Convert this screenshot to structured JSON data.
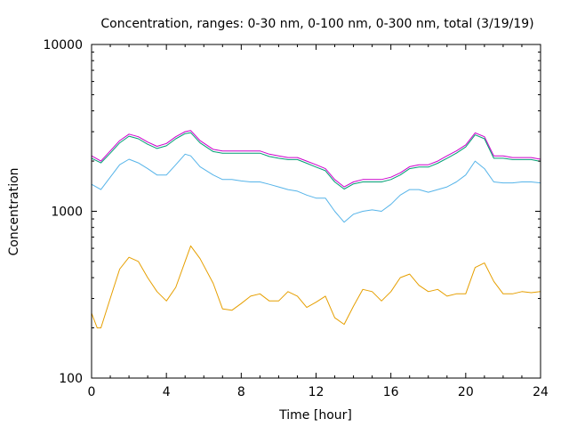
{
  "chart_data": {
    "type": "line",
    "title": "Concentration, ranges: 0-30 nm, 0-100 nm, 0-300 nm, total (3/19/19)",
    "xlabel": "Time [hour]",
    "ylabel": "Concentration",
    "xlim": [
      0,
      24
    ],
    "ylim": [
      100,
      10000
    ],
    "yscale": "log",
    "grid": false,
    "legend": "none",
    "x_ticks": [
      0,
      4,
      8,
      12,
      16,
      20,
      24
    ],
    "x_tick_labels": [
      "0",
      "4",
      "8",
      "12",
      "16",
      "20",
      "24"
    ],
    "y_ticks": [
      100,
      1000,
      10000
    ],
    "y_tick_labels": [
      "100",
      "1000",
      "10000"
    ],
    "series": [
      {
        "color": "#cc00cc",
        "x": [
          0,
          0.5,
          1,
          1.5,
          2,
          2.5,
          3,
          3.5,
          4,
          4.5,
          5,
          5.3,
          5.8,
          6.5,
          7,
          7.5,
          8,
          8.5,
          9,
          9.5,
          10,
          10.5,
          11,
          11.5,
          12,
          12.5,
          13,
          13.5,
          14,
          14.5,
          15,
          15.5,
          16,
          16.5,
          17,
          17.5,
          18,
          18.5,
          19,
          19.5,
          20,
          20.5,
          21,
          21.5,
          22,
          22.5,
          23,
          23.5,
          24
        ],
        "y": [
          2150,
          2000,
          2300,
          2650,
          2900,
          2800,
          2600,
          2450,
          2550,
          2800,
          3000,
          3050,
          2650,
          2350,
          2300,
          2300,
          2300,
          2300,
          2300,
          2200,
          2150,
          2100,
          2100,
          2000,
          1900,
          1800,
          1550,
          1400,
          1500,
          1550,
          1550,
          1550,
          1600,
          1700,
          1850,
          1900,
          1900,
          2000,
          2150,
          2300,
          2500,
          2950,
          2800,
          2150,
          2150,
          2100,
          2100,
          2100,
          2050
        ]
      },
      {
        "color": "#009e73",
        "x": [
          0,
          0.5,
          1,
          1.5,
          2,
          2.5,
          3,
          3.5,
          4,
          4.5,
          5,
          5.3,
          5.8,
          6.5,
          7,
          7.5,
          8,
          8.5,
          9,
          9.5,
          10,
          10.5,
          11,
          11.5,
          12,
          12.5,
          13,
          13.5,
          14,
          14.5,
          15,
          15.5,
          16,
          16.5,
          17,
          17.5,
          18,
          18.5,
          19,
          19.5,
          20,
          20.5,
          21,
          21.5,
          22,
          22.5,
          23,
          23.5,
          24
        ],
        "y": [
          2080,
          1950,
          2230,
          2570,
          2820,
          2720,
          2520,
          2380,
          2470,
          2720,
          2920,
          2960,
          2570,
          2280,
          2230,
          2230,
          2230,
          2230,
          2230,
          2130,
          2080,
          2040,
          2040,
          1940,
          1840,
          1750,
          1500,
          1360,
          1460,
          1500,
          1500,
          1500,
          1550,
          1650,
          1800,
          1840,
          1840,
          1940,
          2080,
          2230,
          2430,
          2870,
          2720,
          2080,
          2080,
          2040,
          2040,
          2040,
          1990
        ]
      },
      {
        "color": "#56b4e9",
        "x": [
          0,
          0.5,
          1,
          1.5,
          2,
          2.5,
          3,
          3.5,
          4,
          4.5,
          5,
          5.3,
          5.8,
          6.5,
          7,
          7.5,
          8,
          8.5,
          9,
          9.5,
          10,
          10.5,
          11,
          11.5,
          12,
          12.5,
          13,
          13.5,
          14,
          14.5,
          15,
          15.5,
          16,
          16.5,
          17,
          17.5,
          18,
          18.5,
          19,
          19.5,
          20,
          20.5,
          21,
          21.5,
          22,
          22.5,
          23,
          23.5,
          24
        ],
        "y": [
          1450,
          1350,
          1600,
          1900,
          2050,
          1950,
          1800,
          1650,
          1650,
          1900,
          2200,
          2150,
          1850,
          1650,
          1550,
          1550,
          1520,
          1500,
          1500,
          1450,
          1400,
          1350,
          1320,
          1250,
          1200,
          1200,
          1000,
          860,
          960,
          1000,
          1020,
          1000,
          1100,
          1250,
          1350,
          1350,
          1300,
          1350,
          1400,
          1500,
          1650,
          2000,
          1800,
          1500,
          1480,
          1480,
          1500,
          1500,
          1480
        ]
      },
      {
        "color": "#e69f00",
        "x": [
          0,
          0.3,
          0.5,
          1,
          1.5,
          2,
          2.5,
          3,
          3.5,
          4,
          4.5,
          5,
          5.3,
          5.8,
          6.5,
          7,
          7.5,
          8,
          8.5,
          9,
          9.5,
          10,
          10.5,
          11,
          11.5,
          12,
          12.5,
          13,
          13.5,
          14,
          14.5,
          15,
          15.5,
          16,
          16.5,
          17,
          17.5,
          18,
          18.5,
          19,
          19.5,
          20,
          20.5,
          21,
          21.5,
          22,
          22.5,
          23,
          23.5,
          24
        ],
        "y": [
          245,
          200,
          200,
          300,
          450,
          530,
          500,
          400,
          330,
          290,
          350,
          500,
          620,
          520,
          370,
          260,
          255,
          280,
          310,
          320,
          290,
          290,
          330,
          310,
          265,
          285,
          310,
          230,
          210,
          270,
          340,
          330,
          290,
          330,
          400,
          420,
          360,
          330,
          340,
          310,
          320,
          320,
          460,
          490,
          380,
          320,
          320,
          330,
          325,
          330
        ]
      }
    ]
  }
}
